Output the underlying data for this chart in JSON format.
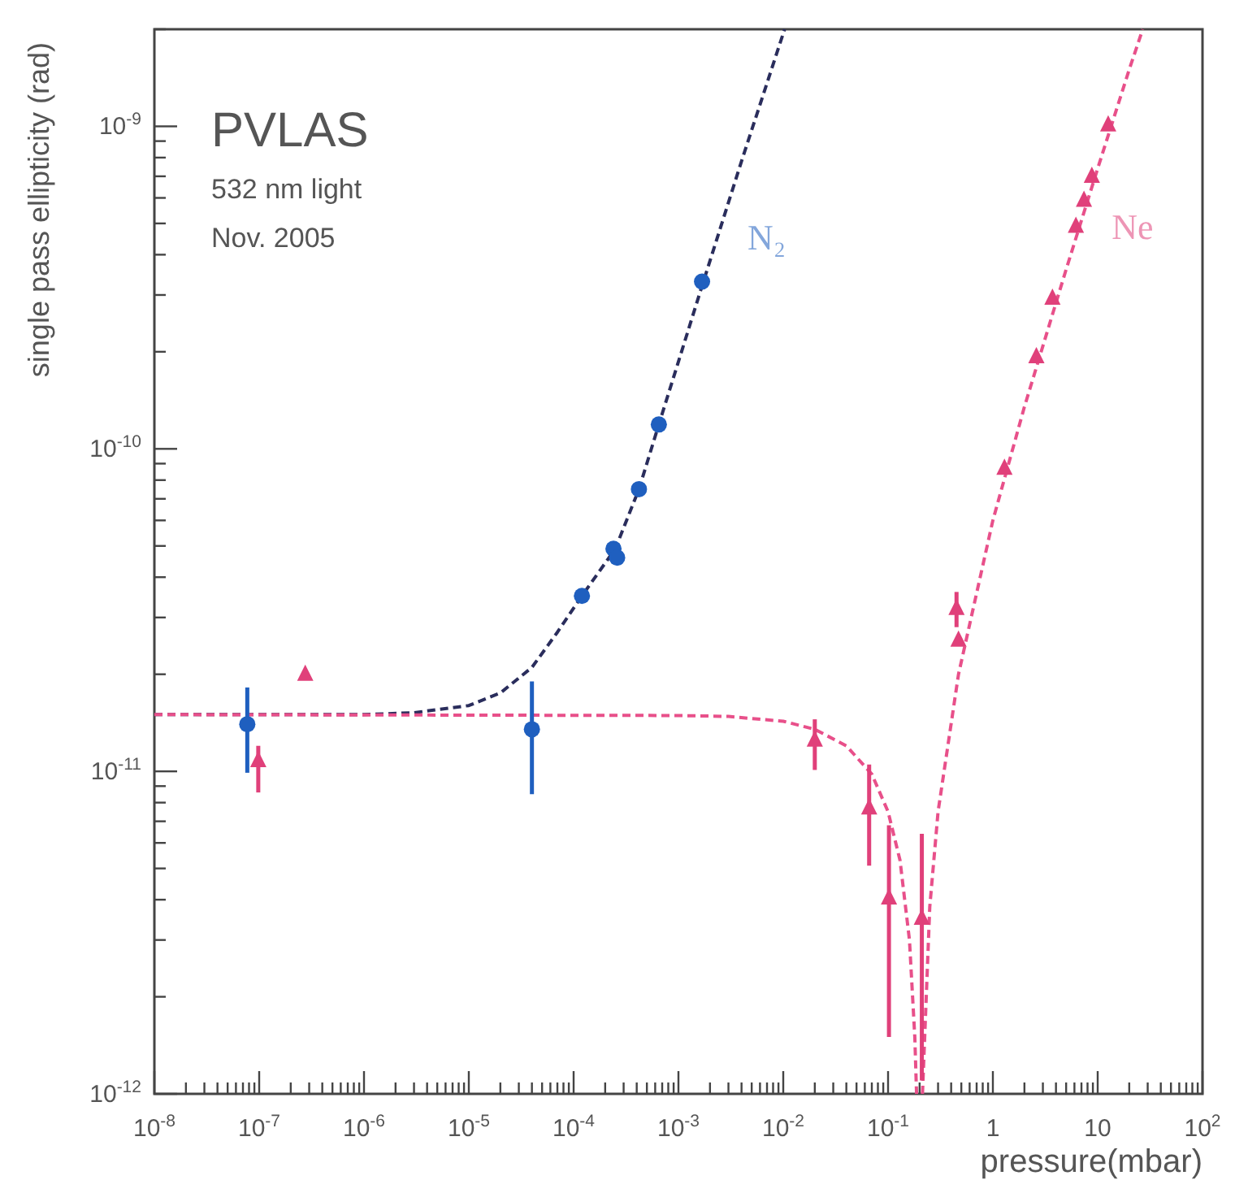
{
  "chart_data": {
    "type": "scatter",
    "annotations": [
      "PVLAS",
      "532 nm light",
      "Nov. 2005"
    ],
    "xlabel": "pressure(mbar)",
    "ylabel": "single pass ellipticity (rad)",
    "log": "xy",
    "grid": false,
    "xlim": [
      1e-08,
      100
    ],
    "ylim": [
      1e-12,
      2e-09
    ],
    "xticks": [
      {
        "value": 1e-08,
        "label": "10$^{-8}$"
      },
      {
        "value": 1e-07,
        "label": "10$^{-7}$"
      },
      {
        "value": 1e-06,
        "label": "10$^{-6}$"
      },
      {
        "value": 1e-05,
        "label": "10$^{-5}$"
      },
      {
        "value": 0.0001,
        "label": "10$^{-4}$"
      },
      {
        "value": 0.001,
        "label": "10$^{-3}$"
      },
      {
        "value": 0.01,
        "label": "10$^{-2}$"
      },
      {
        "value": 0.1,
        "label": "10$^{-1}$"
      },
      1,
      10,
      {
        "value": 100,
        "label": "10$^{2}$"
      },
      {
        "value": 2e-08,
        "label": null
      },
      {
        "value": 3e-08,
        "label": null
      },
      {
        "value": 4e-08,
        "label": null
      },
      {
        "value": 5e-08,
        "label": null
      },
      {
        "value": 6e-08,
        "label": null
      },
      {
        "value": 7e-08,
        "label": null
      },
      {
        "value": 8e-08,
        "label": null
      },
      {
        "value": 9e-08,
        "label": null
      },
      {
        "value": 2e-07,
        "label": null
      },
      {
        "value": 3e-07,
        "label": null
      },
      {
        "value": 4e-07,
        "label": null
      },
      {
        "value": 5e-07,
        "label": null
      },
      {
        "value": 6e-07,
        "label": null
      },
      {
        "value": 7e-07,
        "label": null
      },
      {
        "value": 8e-07,
        "label": null
      },
      {
        "value": 9e-07,
        "label": null
      },
      {
        "value": 2e-06,
        "label": null
      },
      {
        "value": 3e-06,
        "label": null
      },
      {
        "value": 4e-06,
        "label": null
      },
      {
        "value": 5e-06,
        "label": null
      },
      {
        "value": 6e-06,
        "label": null
      },
      {
        "value": 7e-06,
        "label": null
      },
      {
        "value": 8e-06,
        "label": null
      },
      {
        "value": 9e-06,
        "label": null
      },
      {
        "value": 2e-05,
        "label": null
      },
      {
        "value": 3e-05,
        "label": null
      },
      {
        "value": 4e-05,
        "label": null
      },
      {
        "value": 5e-05,
        "label": null
      },
      {
        "value": 6e-05,
        "label": null
      },
      {
        "value": 7e-05,
        "label": null
      },
      {
        "value": 8e-05,
        "label": null
      },
      {
        "value": 9e-05,
        "label": null
      },
      {
        "value": 0.0002,
        "label": null
      },
      {
        "value": 0.0003,
        "label": null
      },
      {
        "value": 0.0004,
        "label": null
      },
      {
        "value": 0.0005,
        "label": null
      },
      {
        "value": 0.0006,
        "label": null
      },
      {
        "value": 0.0007,
        "label": null
      },
      {
        "value": 0.0008,
        "label": null
      },
      {
        "value": 0.0009,
        "label": null
      },
      {
        "value": 0.002,
        "label": null
      },
      {
        "value": 0.003,
        "label": null
      },
      {
        "value": 0.004,
        "label": null
      },
      {
        "value": 0.005,
        "label": null
      },
      {
        "value": 0.006,
        "label": null
      },
      {
        "value": 0.007,
        "label": null
      },
      {
        "value": 0.008,
        "label": null
      },
      {
        "value": 0.009,
        "label": null
      },
      {
        "value": 0.02,
        "label": null
      },
      {
        "value": 0.03,
        "label": null
      },
      {
        "value": 0.04,
        "label": null
      },
      {
        "value": 0.05,
        "label": null
      },
      {
        "value": 0.06,
        "label": null
      },
      {
        "value": 0.07,
        "label": null
      },
      {
        "value": 0.08,
        "label": null
      },
      {
        "value": 0.09,
        "label": null
      },
      {
        "value": 0.2,
        "label": null
      },
      {
        "value": 0.3,
        "label": null
      },
      {
        "value": 0.4,
        "label": null
      },
      {
        "value": 0.5,
        "label": null
      },
      {
        "value": 0.6,
        "label": null
      },
      {
        "value": 0.7,
        "label": null
      },
      {
        "value": 0.8,
        "label": null
      },
      {
        "value": 0.9,
        "label": null
      },
      {
        "value": 2,
        "label": null
      },
      {
        "value": 3,
        "label": null
      },
      {
        "value": 4,
        "label": null
      },
      {
        "value": 5,
        "label": null
      },
      {
        "value": 6,
        "label": null
      },
      {
        "value": 7,
        "label": null
      },
      {
        "value": 8,
        "label": null
      },
      {
        "value": 9,
        "label": null
      },
      {
        "value": 20,
        "label": null
      },
      {
        "value": 30,
        "label": null
      },
      {
        "value": 40,
        "label": null
      },
      {
        "value": 50,
        "label": null
      },
      {
        "value": 60,
        "label": null
      },
      {
        "value": 70,
        "label": null
      },
      {
        "value": 80,
        "label": null
      },
      {
        "value": 90,
        "label": null
      }
    ],
    "yticks": [
      {
        "value": 1e-12,
        "label": "10$^{-12}$"
      },
      {
        "value": 1e-11,
        "label": "10$^{-11}$"
      },
      {
        "value": 1e-10,
        "label": "10$^{-10}$"
      },
      {
        "value": 1e-09,
        "label": "10$^{-9}$"
      },
      {
        "value": 2e-12,
        "label": null
      },
      {
        "value": 3e-12,
        "label": null
      },
      {
        "value": 4e-12,
        "label": null
      },
      {
        "value": 5e-12,
        "label": null
      },
      {
        "value": 6e-12,
        "label": null
      },
      {
        "value": 7e-12,
        "label": null
      },
      {
        "value": 8e-12,
        "label": null
      },
      {
        "value": 9e-12,
        "label": null
      },
      {
        "value": 2e-11,
        "label": null
      },
      {
        "value": 3e-11,
        "label": null
      },
      {
        "value": 4e-11,
        "label": null
      },
      {
        "value": 5e-11,
        "label": null
      },
      {
        "value": 6e-11,
        "label": null
      },
      {
        "value": 7e-11,
        "label": null
      },
      {
        "value": 8e-11,
        "label": null
      },
      {
        "value": 9e-11,
        "label": null
      },
      {
        "value": 2e-10,
        "label": null
      },
      {
        "value": 3e-10,
        "label": null
      },
      {
        "value": 4e-10,
        "label": null
      },
      {
        "value": 5e-10,
        "label": null
      },
      {
        "value": 6e-10,
        "label": null
      },
      {
        "value": 7e-10,
        "label": null
      },
      {
        "value": 8e-10,
        "label": null
      },
      {
        "value": 9e-10,
        "label": null
      },
      {
        "value": 2e-09,
        "label": null
      }
    ],
    "series": [
      {
        "type": "line",
        "color": "#2a2d5c",
        "line_style": "dashed",
        "x": [
          1e-08,
          1e-06,
          3e-06,
          1e-05,
          2e-05,
          4e-05,
          7e-05,
          0.00012,
          0.00025,
          0.00042,
          0.00065,
          0.00168,
          0.004,
          0.0103
        ],
        "values": [
          1.5e-11,
          1.5e-11,
          1.52e-11,
          1.6e-11,
          1.75e-11,
          2.1e-11,
          2.7e-11,
          3.5e-11,
          4.9e-11,
          7.5e-11,
          1.19e-10,
          3.2e-10,
          7.8e-10,
          2e-09
        ]
      },
      {
        "type": "line",
        "color": "#e8508a",
        "line_style": "dashed",
        "x": [
          1e-08,
          0.001,
          0.003,
          0.01,
          0.02,
          0.04,
          0.07,
          0.1,
          0.13,
          0.16,
          0.18,
          0.187,
          null,
          0.213,
          0.25,
          0.3,
          0.47,
          1,
          2,
          5,
          10,
          20,
          26.9
        ],
        "values": [
          1.5e-11,
          1.49e-11,
          1.48e-11,
          1.43e-11,
          1.35e-11,
          1.2e-11,
          9.8e-12,
          7.5e-12,
          5.3e-12,
          3e-12,
          1.5e-12,
          1e-12,
          null,
          1e-12,
          3.8e-12,
          7.5e-12,
          2e-11,
          6e-11,
          1.35e-10,
          3.6e-10,
          7.4e-10,
          1.5e-09,
          2e-09
        ]
      },
      {
        "name": "N₂",
        "color": "#1f5fbf",
        "marker": "circle",
        "x": [
          7.7e-08,
          4e-05,
          0.00012,
          0.00024,
          0.00026,
          0.00042,
          0.00065,
          0.00168
        ],
        "values": [
          1.4e-11,
          1.35e-11,
          3.5e-11,
          4.9e-11,
          4.6e-11,
          7.5e-11,
          1.19e-10,
          3.3e-10
        ],
        "errors": [
          [
            9.9e-12,
            1.82e-11
          ],
          [
            8.5e-12,
            1.9e-11
          ],
          null,
          null,
          null,
          null,
          null,
          null
        ]
      },
      {
        "name": "Ne",
        "color": "#e0407a",
        "marker": "triangle",
        "x": [
          9.8e-08,
          2.75e-07,
          0.02,
          0.066,
          0.102,
          0.21,
          0.47,
          0.45,
          1.29,
          2.6,
          3.7,
          6.2,
          7.4,
          8.8,
          12.6
        ],
        "values": [
          1.08e-11,
          2e-11,
          1.25e-11,
          7.7e-12,
          4.05e-12,
          3.5e-12,
          2.55e-11,
          3.2e-11,
          8.7e-11,
          1.93e-10,
          2.93e-10,
          4.9e-10,
          5.9e-10,
          7e-10,
          1.01e-09
        ],
        "errors": [
          [
            8.6e-12,
            1.2e-11
          ],
          null,
          [
            1.01e-11,
            1.45e-11
          ],
          [
            5.1e-12,
            1.05e-11
          ],
          [
            1.5e-12,
            6.8e-12
          ],
          [
            1.1e-12,
            6.4e-12
          ],
          null,
          [
            2.8e-11,
            3.6e-11
          ],
          null,
          null,
          null,
          null,
          null,
          null,
          null
        ]
      }
    ]
  }
}
